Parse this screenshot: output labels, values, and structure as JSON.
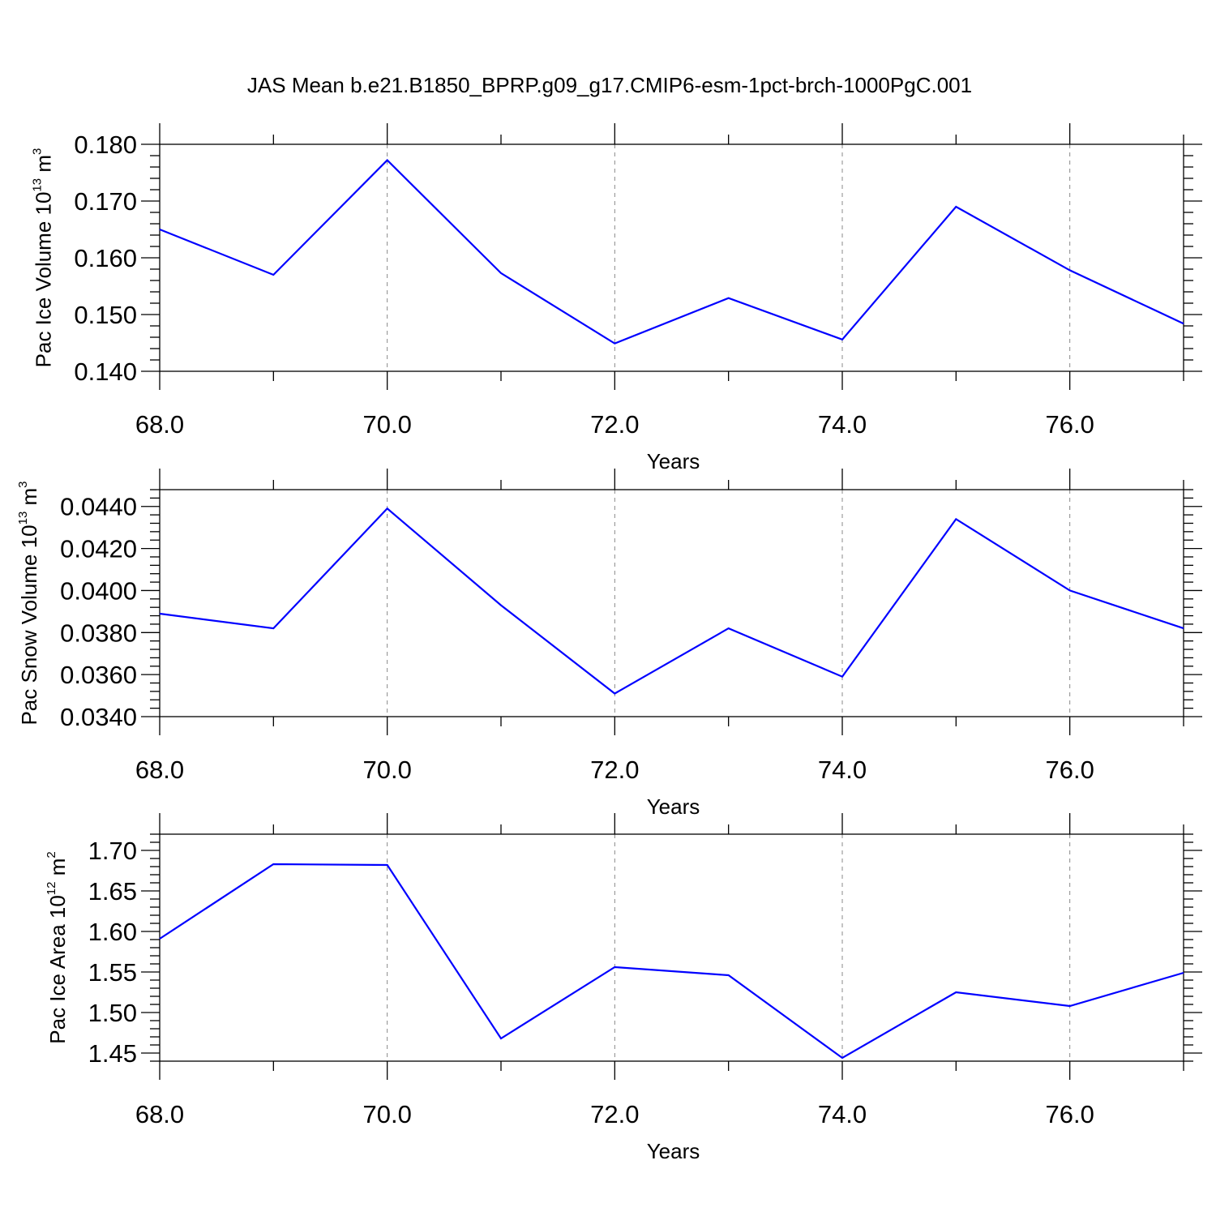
{
  "figure": {
    "title": "JAS Mean b.e21.B1850_BPRP.g09_g17.CMIP6-esm-1pct-brch-1000PgC.001"
  },
  "chart_data": [
    {
      "type": "line",
      "xlabel": "Years",
      "ylabel": {
        "text": "Pac Ice Volume 10",
        "exp": "13",
        "unit": " m",
        "unit_exp": "3"
      },
      "x": [
        68,
        69,
        70,
        71,
        72,
        73,
        74,
        75,
        76,
        77
      ],
      "values": [
        0.165,
        0.157,
        0.1772,
        0.1573,
        0.1449,
        0.1529,
        0.1456,
        0.169,
        0.1578,
        0.1484
      ],
      "xlim": [
        68,
        77
      ],
      "ylim": [
        0.14,
        0.18
      ],
      "xticks": [
        68,
        70,
        72,
        74,
        76
      ],
      "xtick_labels": [
        "68.0",
        "70.0",
        "72.0",
        "74.0",
        "76.0"
      ],
      "yticks": [
        0.14,
        0.15,
        0.16,
        0.17,
        0.18
      ],
      "ytick_labels": [
        "0.140",
        "0.150",
        "0.160",
        "0.170",
        "0.180"
      ],
      "grid": "vertical dashed at major x ticks",
      "line_color": "#0000ff"
    },
    {
      "type": "line",
      "xlabel": "Years",
      "ylabel": {
        "text": "Pac Snow Volume 10",
        "exp": "13",
        "unit": " m",
        "unit_exp": "3"
      },
      "x": [
        68,
        69,
        70,
        71,
        72,
        73,
        74,
        75,
        76,
        77
      ],
      "values": [
        0.0389,
        0.0382,
        0.0439,
        0.0393,
        0.0351,
        0.0382,
        0.0359,
        0.0434,
        0.04,
        0.0382
      ],
      "xlim": [
        68,
        77
      ],
      "ylim": [
        0.034,
        0.0448
      ],
      "xticks": [
        68,
        70,
        72,
        74,
        76
      ],
      "xtick_labels": [
        "68.0",
        "70.0",
        "72.0",
        "74.0",
        "76.0"
      ],
      "yticks": [
        0.034,
        0.036,
        0.038,
        0.04,
        0.042,
        0.044
      ],
      "ytick_labels": [
        "0.0340",
        "0.0360",
        "0.0380",
        "0.0400",
        "0.0420",
        "0.0440"
      ],
      "grid": "vertical dashed at major x ticks",
      "line_color": "#0000ff"
    },
    {
      "type": "line",
      "xlabel": "Years",
      "ylabel": {
        "text": "Pac Ice Area 10",
        "exp": "12",
        "unit": " m",
        "unit_exp": "2"
      },
      "x": [
        68,
        69,
        70,
        71,
        72,
        73,
        74,
        75,
        76,
        77
      ],
      "values": [
        1.591,
        1.683,
        1.682,
        1.468,
        1.556,
        1.546,
        1.444,
        1.525,
        1.508,
        1.549
      ],
      "xlim": [
        68,
        77
      ],
      "ylim": [
        1.44,
        1.72
      ],
      "xticks": [
        68,
        70,
        72,
        74,
        76
      ],
      "xtick_labels": [
        "68.0",
        "70.0",
        "72.0",
        "74.0",
        "76.0"
      ],
      "yticks": [
        1.45,
        1.5,
        1.55,
        1.6,
        1.65,
        1.7
      ],
      "ytick_labels": [
        "1.45",
        "1.50",
        "1.55",
        "1.60",
        "1.65",
        "1.70"
      ],
      "grid": "vertical dashed at major x ticks",
      "line_color": "#0000ff"
    }
  ]
}
